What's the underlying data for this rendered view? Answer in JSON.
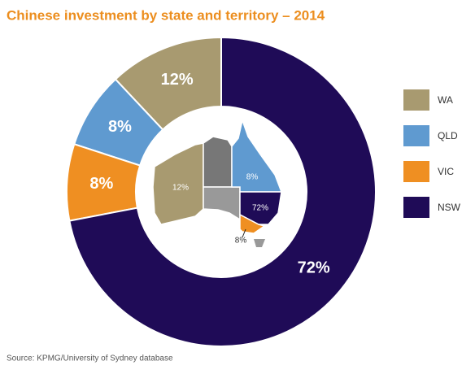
{
  "chart_data": {
    "type": "donut",
    "title": "Chinese investment by state and territory – 2014",
    "categories": [
      "WA",
      "QLD",
      "VIC",
      "NSW"
    ],
    "values": [
      12,
      8,
      8,
      72
    ],
    "value_labels": [
      "12%",
      "8%",
      "8%",
      "72%"
    ],
    "colors": [
      "#a89a70",
      "#5f9ad0",
      "#ef8f22",
      "#1f0b57"
    ],
    "legend": "right",
    "source": "Source: KPMG/University of Sydney database"
  }
}
